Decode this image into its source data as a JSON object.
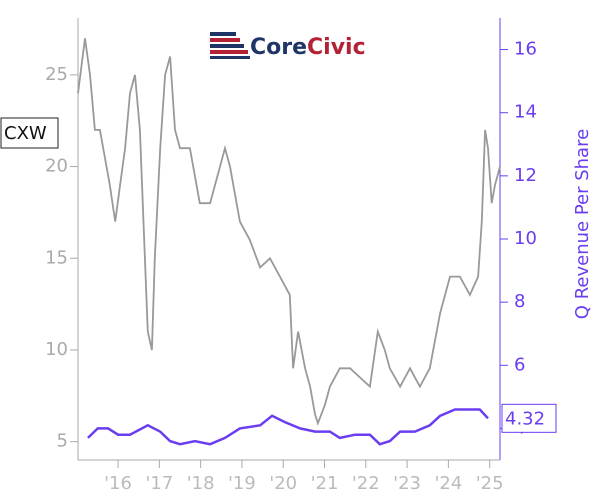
{
  "chart_data": {
    "type": "line",
    "logo": {
      "parts": [
        "Core",
        "Civic"
      ]
    },
    "ticker": "CXW",
    "y2_label": "Q Revenue Per Share",
    "xlim": [
      2015.03,
      2025.25
    ],
    "xticks": [
      {
        "value": 2016,
        "label": "'16"
      },
      {
        "value": 2017,
        "label": "'17"
      },
      {
        "value": 2018,
        "label": "'18"
      },
      {
        "value": 2019,
        "label": "'19"
      },
      {
        "value": 2020,
        "label": "'20"
      },
      {
        "value": 2021,
        "label": "'21"
      },
      {
        "value": 2022,
        "label": "'22"
      },
      {
        "value": 2023,
        "label": "'23"
      },
      {
        "value": 2024,
        "label": "'24"
      },
      {
        "value": 2025,
        "label": "'25"
      }
    ],
    "ylim": [
      4,
      28.1
    ],
    "yticks": [
      5,
      10,
      15,
      20,
      25
    ],
    "y2lim": [
      3,
      17
    ],
    "y2ticks": [
      4,
      6,
      8,
      10,
      12,
      14,
      16
    ],
    "series": [
      {
        "color": "#999999",
        "axis": "y",
        "x": [
          2015.03,
          2015.2,
          2015.32,
          2015.44,
          2015.56,
          2015.8,
          2015.93,
          2016.05,
          2016.17,
          2016.29,
          2016.41,
          2016.53,
          2016.65,
          2016.72,
          2016.82,
          2016.89,
          2017.02,
          2017.14,
          2017.26,
          2017.38,
          2017.5,
          2017.74,
          2017.98,
          2018.23,
          2018.47,
          2018.59,
          2018.71,
          2018.95,
          2019.19,
          2019.44,
          2019.68,
          2019.92,
          2020.16,
          2020.24,
          2020.36,
          2020.53,
          2020.65,
          2020.77,
          2020.84,
          2021.01,
          2021.13,
          2021.37,
          2021.62,
          2021.86,
          2022.1,
          2022.29,
          2022.46,
          2022.58,
          2022.83,
          2023.07,
          2023.31,
          2023.55,
          2023.8,
          2024.04,
          2024.28,
          2024.52,
          2024.72,
          2024.81,
          2024.89,
          2024.96,
          2025.05,
          2025.13,
          2025.25
        ],
        "values": [
          24,
          27,
          25,
          22,
          22,
          19,
          17,
          19,
          21,
          24,
          25,
          22,
          15,
          11,
          10,
          15,
          21,
          25,
          26,
          22,
          21,
          21,
          18,
          18,
          20,
          21,
          20,
          17,
          16,
          14.5,
          15,
          14,
          13,
          9,
          11,
          9,
          8,
          6.5,
          6,
          7,
          8,
          9,
          9,
          8.5,
          8,
          11,
          10,
          9,
          8,
          9,
          8,
          9,
          12,
          14,
          14,
          13,
          14,
          17,
          22,
          21,
          18,
          19,
          20
        ]
      },
      {
        "color": "#6a3df0",
        "axis": "y2",
        "x": [
          2015.27,
          2015.51,
          2015.76,
          2016.0,
          2016.29,
          2016.72,
          2017.02,
          2017.26,
          2017.5,
          2017.86,
          2018.23,
          2018.59,
          2018.95,
          2019.44,
          2019.73,
          2020.04,
          2020.41,
          2020.77,
          2021.13,
          2021.37,
          2021.74,
          2022.1,
          2022.34,
          2022.58,
          2022.83,
          2023.19,
          2023.55,
          2023.8,
          2024.16,
          2024.52,
          2024.76,
          2024.96
        ],
        "values": [
          3.7,
          4.0,
          4.0,
          3.8,
          3.8,
          4.1,
          3.9,
          3.6,
          3.5,
          3.6,
          3.5,
          3.7,
          4.0,
          4.1,
          4.4,
          4.2,
          4.0,
          3.9,
          3.9,
          3.7,
          3.8,
          3.8,
          3.5,
          3.6,
          3.9,
          3.9,
          4.1,
          4.4,
          4.6,
          4.6,
          4.6,
          4.32
        ]
      }
    ]
  }
}
